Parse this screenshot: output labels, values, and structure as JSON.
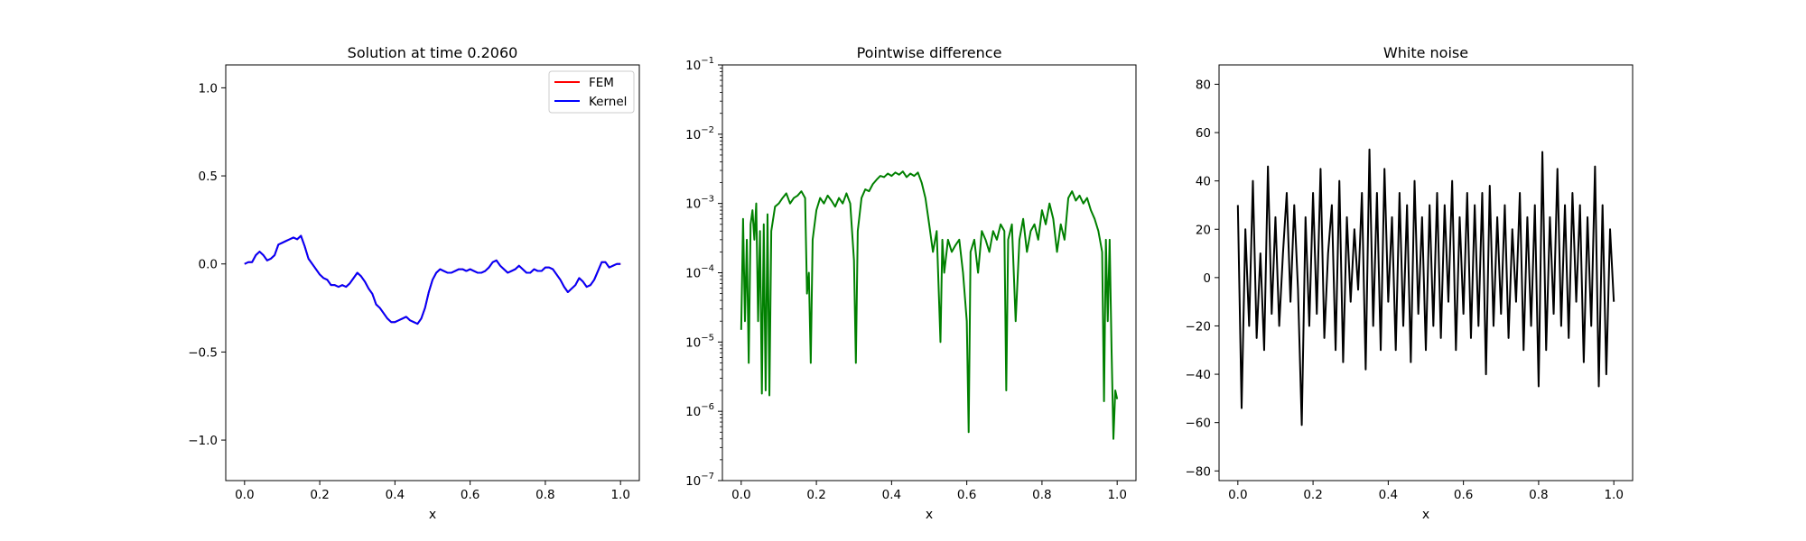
{
  "chart_data": [
    {
      "type": "line",
      "title": "Solution at time 0.2060",
      "xlabel": "x",
      "ylabel": "",
      "xlim": [
        -0.05,
        1.05
      ],
      "ylim": [
        -1.23,
        1.13
      ],
      "xticks": [
        0.0,
        0.2,
        0.4,
        0.6,
        0.8,
        1.0
      ],
      "xtick_labels": [
        "0.0",
        "0.2",
        "0.4",
        "0.6",
        "0.8",
        "1.0"
      ],
      "yticks": [
        -1.0,
        -0.5,
        0.0,
        0.5,
        1.0
      ],
      "ytick_labels": [
        "−1.0",
        "−0.5",
        "0.0",
        "0.5",
        "1.0"
      ],
      "legend": {
        "position": "top-right",
        "entries": [
          "FEM",
          "Kernel"
        ]
      },
      "grid": false,
      "series": [
        {
          "name": "FEM",
          "color": "#ff0000",
          "x": [
            0.0,
            0.01,
            0.02,
            0.03,
            0.04,
            0.05,
            0.06,
            0.07,
            0.08,
            0.09,
            0.1,
            0.11,
            0.12,
            0.13,
            0.14,
            0.15,
            0.16,
            0.17,
            0.18,
            0.19,
            0.2,
            0.21,
            0.22,
            0.23,
            0.24,
            0.25,
            0.26,
            0.27,
            0.28,
            0.29,
            0.3,
            0.31,
            0.32,
            0.33,
            0.34,
            0.35,
            0.36,
            0.37,
            0.38,
            0.39,
            0.4,
            0.41,
            0.42,
            0.43,
            0.44,
            0.45,
            0.46,
            0.47,
            0.48,
            0.49,
            0.5,
            0.51,
            0.52,
            0.53,
            0.54,
            0.55,
            0.56,
            0.57,
            0.58,
            0.59,
            0.6,
            0.61,
            0.62,
            0.63,
            0.64,
            0.65,
            0.66,
            0.67,
            0.68,
            0.69,
            0.7,
            0.71,
            0.72,
            0.73,
            0.74,
            0.75,
            0.76,
            0.77,
            0.78,
            0.79,
            0.8,
            0.81,
            0.82,
            0.83,
            0.84,
            0.85,
            0.86,
            0.87,
            0.88,
            0.89,
            0.9,
            0.91,
            0.92,
            0.93,
            0.94,
            0.95,
            0.96,
            0.97,
            0.98,
            0.99,
            1.0
          ],
          "y": [
            0.0,
            0.01,
            0.01,
            0.05,
            0.07,
            0.05,
            0.02,
            0.03,
            0.05,
            0.11,
            0.12,
            0.13,
            0.14,
            0.15,
            0.14,
            0.16,
            0.1,
            0.03,
            0.0,
            -0.03,
            -0.06,
            -0.08,
            -0.09,
            -0.12,
            -0.12,
            -0.13,
            -0.12,
            -0.13,
            -0.11,
            -0.08,
            -0.05,
            -0.07,
            -0.1,
            -0.14,
            -0.17,
            -0.23,
            -0.25,
            -0.28,
            -0.31,
            -0.33,
            -0.33,
            -0.32,
            -0.31,
            -0.3,
            -0.32,
            -0.33,
            -0.34,
            -0.31,
            -0.25,
            -0.16,
            -0.09,
            -0.05,
            -0.03,
            -0.04,
            -0.05,
            -0.05,
            -0.04,
            -0.03,
            -0.03,
            -0.04,
            -0.03,
            -0.04,
            -0.05,
            -0.05,
            -0.04,
            -0.02,
            0.01,
            0.02,
            -0.01,
            -0.03,
            -0.05,
            -0.04,
            -0.03,
            -0.01,
            -0.03,
            -0.05,
            -0.05,
            -0.03,
            -0.04,
            -0.04,
            -0.02,
            -0.02,
            -0.03,
            -0.06,
            -0.09,
            -0.13,
            -0.16,
            -0.14,
            -0.12,
            -0.08,
            -0.1,
            -0.13,
            -0.12,
            -0.09,
            -0.04,
            0.01,
            0.01,
            -0.02,
            -0.01,
            0.0,
            0.0
          ]
        },
        {
          "name": "Kernel",
          "color": "#0000ff",
          "x": [
            0.0,
            0.01,
            0.02,
            0.03,
            0.04,
            0.05,
            0.06,
            0.07,
            0.08,
            0.09,
            0.1,
            0.11,
            0.12,
            0.13,
            0.14,
            0.15,
            0.16,
            0.17,
            0.18,
            0.19,
            0.2,
            0.21,
            0.22,
            0.23,
            0.24,
            0.25,
            0.26,
            0.27,
            0.28,
            0.29,
            0.3,
            0.31,
            0.32,
            0.33,
            0.34,
            0.35,
            0.36,
            0.37,
            0.38,
            0.39,
            0.4,
            0.41,
            0.42,
            0.43,
            0.44,
            0.45,
            0.46,
            0.47,
            0.48,
            0.49,
            0.5,
            0.51,
            0.52,
            0.53,
            0.54,
            0.55,
            0.56,
            0.57,
            0.58,
            0.59,
            0.6,
            0.61,
            0.62,
            0.63,
            0.64,
            0.65,
            0.66,
            0.67,
            0.68,
            0.69,
            0.7,
            0.71,
            0.72,
            0.73,
            0.74,
            0.75,
            0.76,
            0.77,
            0.78,
            0.79,
            0.8,
            0.81,
            0.82,
            0.83,
            0.84,
            0.85,
            0.86,
            0.87,
            0.88,
            0.89,
            0.9,
            0.91,
            0.92,
            0.93,
            0.94,
            0.95,
            0.96,
            0.97,
            0.98,
            0.99,
            1.0
          ],
          "y": [
            0.0,
            0.01,
            0.01,
            0.05,
            0.07,
            0.05,
            0.02,
            0.03,
            0.05,
            0.11,
            0.12,
            0.13,
            0.14,
            0.15,
            0.14,
            0.16,
            0.1,
            0.03,
            0.0,
            -0.03,
            -0.06,
            -0.08,
            -0.09,
            -0.12,
            -0.12,
            -0.13,
            -0.12,
            -0.13,
            -0.11,
            -0.08,
            -0.05,
            -0.07,
            -0.1,
            -0.14,
            -0.17,
            -0.23,
            -0.25,
            -0.28,
            -0.31,
            -0.33,
            -0.33,
            -0.32,
            -0.31,
            -0.3,
            -0.32,
            -0.33,
            -0.34,
            -0.31,
            -0.25,
            -0.16,
            -0.09,
            -0.05,
            -0.03,
            -0.04,
            -0.05,
            -0.05,
            -0.04,
            -0.03,
            -0.03,
            -0.04,
            -0.03,
            -0.04,
            -0.05,
            -0.05,
            -0.04,
            -0.02,
            0.01,
            0.02,
            -0.01,
            -0.03,
            -0.05,
            -0.04,
            -0.03,
            -0.01,
            -0.03,
            -0.05,
            -0.05,
            -0.03,
            -0.04,
            -0.04,
            -0.02,
            -0.02,
            -0.03,
            -0.06,
            -0.09,
            -0.13,
            -0.16,
            -0.14,
            -0.12,
            -0.08,
            -0.1,
            -0.13,
            -0.12,
            -0.09,
            -0.04,
            0.01,
            0.01,
            -0.02,
            -0.01,
            0.0,
            0.0
          ]
        }
      ]
    },
    {
      "type": "line",
      "title": "Pointwise difference",
      "xlabel": "x",
      "ylabel": "",
      "yscale": "log",
      "xlim": [
        -0.05,
        1.05
      ],
      "ylim": [
        1e-07,
        0.1
      ],
      "xticks": [
        0.0,
        0.2,
        0.4,
        0.6,
        0.8,
        1.0
      ],
      "xtick_labels": [
        "0.0",
        "0.2",
        "0.4",
        "0.6",
        "0.8",
        "1.0"
      ],
      "yticks": [
        1e-07,
        1e-06,
        1e-05,
        0.0001,
        0.001,
        0.01,
        0.1
      ],
      "ytick_exponents": [
        "−7",
        "−6",
        "−5",
        "−4",
        "−3",
        "−2",
        "−1"
      ],
      "ytick_base": "10",
      "grid": false,
      "series": [
        {
          "color": "#008000",
          "x": [
            0.0,
            0.005,
            0.01,
            0.015,
            0.02,
            0.025,
            0.03,
            0.035,
            0.04,
            0.045,
            0.05,
            0.055,
            0.06,
            0.065,
            0.07,
            0.075,
            0.08,
            0.09,
            0.1,
            0.11,
            0.12,
            0.13,
            0.14,
            0.15,
            0.16,
            0.17,
            0.175,
            0.18,
            0.185,
            0.19,
            0.2,
            0.21,
            0.22,
            0.23,
            0.24,
            0.25,
            0.26,
            0.27,
            0.28,
            0.29,
            0.3,
            0.305,
            0.31,
            0.32,
            0.33,
            0.34,
            0.35,
            0.36,
            0.37,
            0.38,
            0.39,
            0.4,
            0.41,
            0.42,
            0.43,
            0.44,
            0.45,
            0.46,
            0.47,
            0.48,
            0.49,
            0.5,
            0.51,
            0.52,
            0.53,
            0.535,
            0.54,
            0.55,
            0.56,
            0.57,
            0.58,
            0.59,
            0.6,
            0.605,
            0.61,
            0.62,
            0.63,
            0.64,
            0.65,
            0.66,
            0.67,
            0.68,
            0.69,
            0.7,
            0.705,
            0.71,
            0.72,
            0.73,
            0.74,
            0.75,
            0.76,
            0.77,
            0.78,
            0.79,
            0.8,
            0.81,
            0.82,
            0.83,
            0.84,
            0.85,
            0.86,
            0.87,
            0.88,
            0.89,
            0.9,
            0.91,
            0.92,
            0.93,
            0.94,
            0.95,
            0.96,
            0.965,
            0.97,
            0.975,
            0.98,
            0.985,
            0.99,
            0.995,
            1.0
          ],
          "y": [
            1.5e-05,
            0.0006,
            2e-05,
            0.0003,
            5e-06,
            0.0005,
            0.0008,
            0.0003,
            0.001,
            2e-05,
            0.0004,
            1.8e-06,
            0.0005,
            2e-06,
            0.0007,
            1.7e-06,
            0.0004,
            0.0009,
            0.001,
            0.0012,
            0.0014,
            0.001,
            0.0012,
            0.0013,
            0.0015,
            0.0012,
            5e-05,
            0.0001,
            5e-06,
            0.0003,
            0.0008,
            0.0012,
            0.001,
            0.0013,
            0.0011,
            0.0009,
            0.0012,
            0.001,
            0.0014,
            0.001,
            0.00015,
            5e-06,
            0.0004,
            0.0012,
            0.0016,
            0.0015,
            0.0019,
            0.0022,
            0.0025,
            0.0024,
            0.0027,
            0.0025,
            0.0028,
            0.0026,
            0.0029,
            0.0024,
            0.0027,
            0.0025,
            0.0028,
            0.002,
            0.0012,
            0.0005,
            0.0002,
            0.0004,
            1e-05,
            0.0003,
            0.0001,
            0.0003,
            0.0002,
            0.00025,
            0.0003,
            0.0001,
            2e-05,
            5e-07,
            0.0002,
            0.0003,
            0.0001,
            0.0004,
            0.0003,
            0.0002,
            0.0004,
            0.0003,
            0.0005,
            0.0004,
            2e-06,
            0.0003,
            0.0005,
            2e-05,
            0.0003,
            0.0006,
            0.0002,
            0.0004,
            0.0005,
            0.0003,
            0.0008,
            0.0005,
            0.001,
            0.0006,
            0.0002,
            0.0005,
            0.0003,
            0.0012,
            0.0015,
            0.0011,
            0.0013,
            0.001,
            0.0012,
            0.0008,
            0.0006,
            0.0004,
            0.0002,
            1.4e-06,
            0.0003,
            2e-05,
            0.0003,
            8e-06,
            4e-07,
            2e-06,
            1.5e-06
          ]
        }
      ]
    },
    {
      "type": "line",
      "title": "White noise",
      "xlabel": "x",
      "ylabel": "",
      "xlim": [
        -0.05,
        1.05
      ],
      "ylim": [
        -84,
        88
      ],
      "xticks": [
        0.0,
        0.2,
        0.4,
        0.6,
        0.8,
        1.0
      ],
      "xtick_labels": [
        "0.0",
        "0.2",
        "0.4",
        "0.6",
        "0.8",
        "1.0"
      ],
      "yticks": [
        -80,
        -60,
        -40,
        -20,
        0,
        20,
        40,
        60,
        80
      ],
      "ytick_labels": [
        "−80",
        "−60",
        "−40",
        "−20",
        "0",
        "20",
        "40",
        "60",
        "80"
      ],
      "grid": false,
      "series": [
        {
          "color": "#000000",
          "x": [
            0.0,
            0.01,
            0.02,
            0.03,
            0.04,
            0.05,
            0.06,
            0.07,
            0.08,
            0.09,
            0.1,
            0.11,
            0.12,
            0.13,
            0.14,
            0.15,
            0.16,
            0.17,
            0.18,
            0.19,
            0.2,
            0.21,
            0.22,
            0.23,
            0.24,
            0.25,
            0.26,
            0.27,
            0.28,
            0.29,
            0.3,
            0.31,
            0.32,
            0.33,
            0.34,
            0.35,
            0.36,
            0.37,
            0.38,
            0.39,
            0.4,
            0.41,
            0.42,
            0.43,
            0.44,
            0.45,
            0.46,
            0.47,
            0.48,
            0.49,
            0.5,
            0.51,
            0.52,
            0.53,
            0.54,
            0.55,
            0.56,
            0.57,
            0.58,
            0.59,
            0.6,
            0.61,
            0.62,
            0.63,
            0.64,
            0.65,
            0.66,
            0.67,
            0.68,
            0.69,
            0.7,
            0.71,
            0.72,
            0.73,
            0.74,
            0.75,
            0.76,
            0.77,
            0.78,
            0.79,
            0.8,
            0.81,
            0.82,
            0.83,
            0.84,
            0.85,
            0.86,
            0.87,
            0.88,
            0.89,
            0.9,
            0.91,
            0.92,
            0.93,
            0.94,
            0.95,
            0.96,
            0.97,
            0.98,
            0.99,
            1.0
          ],
          "y": [
            30,
            -54,
            20,
            -20,
            40,
            -25,
            10,
            -30,
            46,
            -15,
            25,
            -20,
            10,
            35,
            -10,
            30,
            -5,
            -61,
            25,
            -20,
            35,
            -15,
            45,
            -25,
            10,
            30,
            -30,
            40,
            -35,
            25,
            -10,
            20,
            -5,
            35,
            -38,
            53,
            -20,
            35,
            -30,
            45,
            -10,
            25,
            -30,
            35,
            -20,
            30,
            -35,
            40,
            -15,
            25,
            -30,
            30,
            -20,
            35,
            -25,
            30,
            -10,
            40,
            -30,
            25,
            -15,
            35,
            -25,
            30,
            -20,
            35,
            -40,
            38,
            -20,
            25,
            -15,
            30,
            -25,
            20,
            -10,
            35,
            -30,
            25,
            -20,
            30,
            -45,
            52,
            -30,
            25,
            -15,
            45,
            -20,
            30,
            -25,
            35,
            -10,
            30,
            -35,
            25,
            -20,
            46,
            -45,
            30,
            -40,
            20,
            -10
          ]
        }
      ]
    }
  ]
}
